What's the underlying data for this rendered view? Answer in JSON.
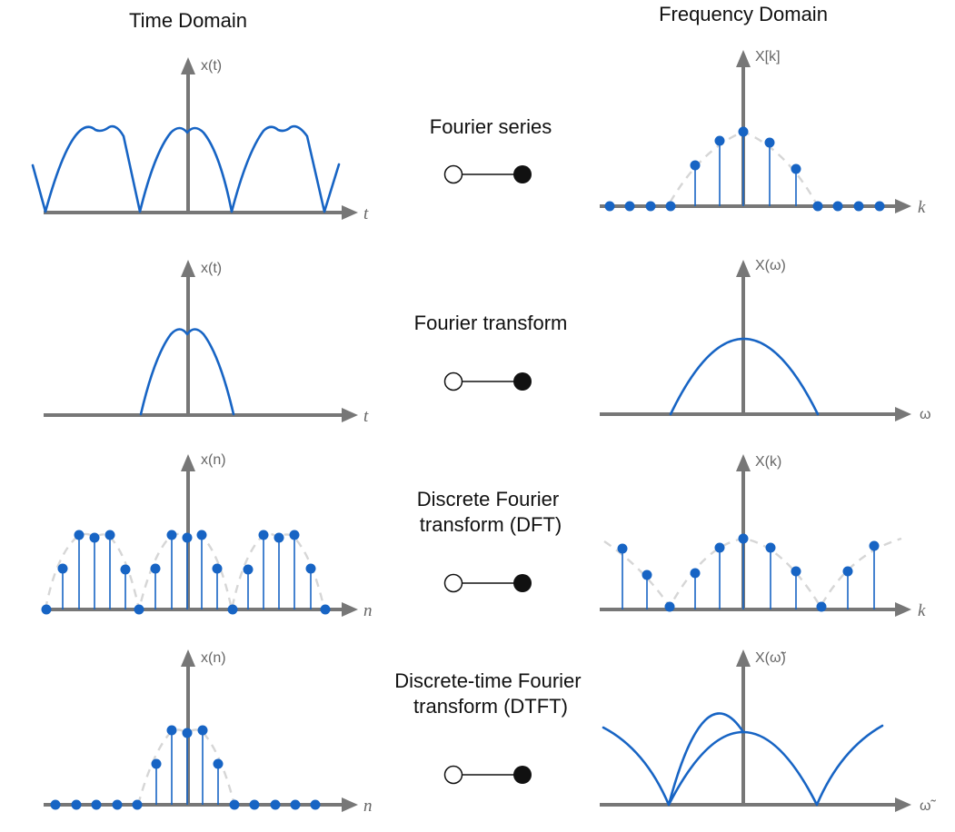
{
  "headers": {
    "time": "Time Domain",
    "frequency": "Frequency Domain"
  },
  "rows": [
    {
      "title_lines": [
        "Fourier series"
      ],
      "time_y_label": "x(t)",
      "time_x_label": "t",
      "freq_y_label": "X[k]",
      "freq_x_label": "k"
    },
    {
      "title_lines": [
        "Fourier transform"
      ],
      "time_y_label": "x(t)",
      "time_x_label": "t",
      "freq_y_label": "X(ω)",
      "freq_x_label": "ω"
    },
    {
      "title_lines": [
        "Discrete Fourier",
        "transform (DFT)"
      ],
      "time_y_label": "x(n)",
      "time_x_label": "n",
      "freq_y_label": "X(k)",
      "freq_x_label": "k"
    },
    {
      "title_lines": [
        "Discrete-time Fourier",
        "transform (DTFT)"
      ],
      "time_y_label": "x(n)",
      "time_x_label": "n",
      "freq_y_label": "X(ω̃)",
      "freq_x_label": "ω̃"
    }
  ],
  "colors": {
    "signal": "#1764c4",
    "axis": "#777777",
    "envelope": "#d6d6d6",
    "connector": "#111111"
  }
}
